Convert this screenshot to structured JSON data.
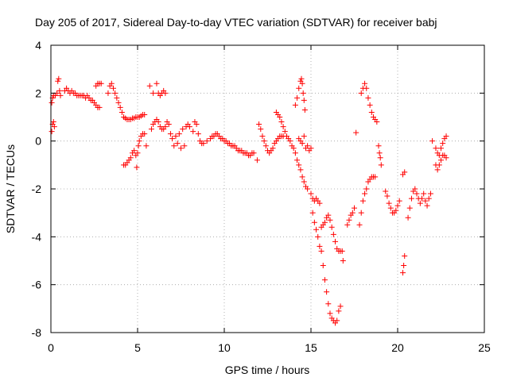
{
  "chart_data": {
    "type": "scatter",
    "title": "Day 205 of 2017, Sidereal Day-to-day VTEC variation (SDTVAR) for receiver babj",
    "xlabel": "GPS time / hours",
    "ylabel": "SDTVAR / TECUs",
    "xlim": [
      0,
      25
    ],
    "ylim": [
      -8,
      4
    ],
    "grid": true,
    "x_ticks": [
      0,
      5,
      10,
      15,
      20,
      25
    ],
    "x_tick_labels": [
      "0",
      "5",
      "10",
      "15",
      "20",
      "25"
    ],
    "y_ticks": [
      -8,
      -6,
      -4,
      -2,
      0,
      2,
      4
    ],
    "y_tick_labels": [
      "-8",
      "-6",
      "-4",
      "-2",
      "0",
      "2",
      "4"
    ],
    "marker": "+",
    "series": [
      {
        "name": "SDTVAR",
        "color": "#ff0000",
        "points": [
          [
            0.05,
            0.4
          ],
          [
            0.1,
            0.7
          ],
          [
            0.15,
            0.8
          ],
          [
            0.2,
            0.6
          ],
          [
            0.05,
            1.6
          ],
          [
            0.1,
            1.8
          ],
          [
            0.15,
            1.9
          ],
          [
            0.25,
            1.9
          ],
          [
            0.35,
            2.0
          ],
          [
            0.4,
            2.5
          ],
          [
            0.45,
            2.6
          ],
          [
            0.5,
            2.1
          ],
          [
            0.55,
            1.9
          ],
          [
            0.8,
            2.1
          ],
          [
            0.9,
            2.2
          ],
          [
            1.0,
            2.1
          ],
          [
            1.1,
            2.0
          ],
          [
            1.2,
            2.1
          ],
          [
            1.3,
            2.0
          ],
          [
            1.4,
            2.0
          ],
          [
            1.5,
            1.9
          ],
          [
            1.6,
            1.9
          ],
          [
            1.7,
            1.9
          ],
          [
            1.8,
            1.9
          ],
          [
            1.9,
            1.9
          ],
          [
            2.0,
            1.8
          ],
          [
            2.1,
            1.9
          ],
          [
            2.2,
            1.8
          ],
          [
            2.3,
            1.7
          ],
          [
            2.4,
            1.7
          ],
          [
            2.5,
            1.6
          ],
          [
            2.6,
            1.5
          ],
          [
            2.7,
            1.4
          ],
          [
            2.8,
            1.4
          ],
          [
            2.6,
            2.3
          ],
          [
            2.7,
            2.4
          ],
          [
            2.8,
            2.4
          ],
          [
            2.9,
            2.4
          ],
          [
            3.3,
            2.0
          ],
          [
            3.4,
            2.3
          ],
          [
            3.5,
            2.4
          ],
          [
            3.6,
            2.2
          ],
          [
            3.7,
            2.0
          ],
          [
            3.8,
            1.8
          ],
          [
            3.9,
            1.6
          ],
          [
            4.0,
            1.4
          ],
          [
            4.1,
            1.2
          ],
          [
            4.2,
            1.0
          ],
          [
            4.3,
            0.95
          ],
          [
            4.4,
            0.9
          ],
          [
            4.5,
            0.9
          ],
          [
            4.6,
            0.9
          ],
          [
            4.7,
            0.95
          ],
          [
            4.8,
            0.95
          ],
          [
            4.9,
            1.0
          ],
          [
            5.0,
            1.0
          ],
          [
            5.1,
            1.0
          ],
          [
            5.2,
            1.05
          ],
          [
            5.3,
            1.1
          ],
          [
            5.4,
            1.1
          ],
          [
            4.2,
            -1.0
          ],
          [
            4.3,
            -1.0
          ],
          [
            4.4,
            -0.9
          ],
          [
            4.5,
            -0.8
          ],
          [
            4.6,
            -0.7
          ],
          [
            4.7,
            -0.5
          ],
          [
            4.8,
            -0.4
          ],
          [
            4.9,
            -0.6
          ],
          [
            4.95,
            -1.1
          ],
          [
            5.0,
            -0.5
          ],
          [
            5.05,
            -0.2
          ],
          [
            5.1,
            0.0
          ],
          [
            5.2,
            0.2
          ],
          [
            5.3,
            0.3
          ],
          [
            5.4,
            0.3
          ],
          [
            5.5,
            -0.2
          ],
          [
            5.8,
            0.5
          ],
          [
            5.9,
            0.7
          ],
          [
            6.0,
            0.8
          ],
          [
            6.1,
            0.9
          ],
          [
            6.2,
            0.8
          ],
          [
            6.3,
            0.6
          ],
          [
            6.4,
            0.5
          ],
          [
            6.5,
            0.5
          ],
          [
            6.6,
            0.6
          ],
          [
            6.7,
            0.8
          ],
          [
            6.8,
            0.7
          ],
          [
            5.7,
            2.3
          ],
          [
            5.9,
            2.0
          ],
          [
            6.1,
            2.4
          ],
          [
            6.2,
            2.0
          ],
          [
            6.3,
            1.9
          ],
          [
            6.4,
            2.0
          ],
          [
            6.5,
            2.1
          ],
          [
            6.6,
            2.0
          ],
          [
            6.9,
            0.3
          ],
          [
            7.0,
            0.1
          ],
          [
            7.2,
            0.2
          ],
          [
            7.4,
            0.3
          ],
          [
            7.6,
            0.5
          ],
          [
            7.8,
            0.6
          ],
          [
            7.9,
            0.7
          ],
          [
            8.0,
            0.6
          ],
          [
            7.1,
            -0.2
          ],
          [
            7.3,
            -0.1
          ],
          [
            7.5,
            -0.3
          ],
          [
            7.7,
            -0.2
          ],
          [
            8.2,
            0.4
          ],
          [
            8.3,
            0.8
          ],
          [
            8.4,
            0.7
          ],
          [
            8.5,
            0.3
          ],
          [
            8.6,
            0.0
          ],
          [
            8.7,
            -0.1
          ],
          [
            8.8,
            -0.1
          ],
          [
            9.0,
            0.0
          ],
          [
            9.2,
            0.1
          ],
          [
            9.3,
            0.2
          ],
          [
            9.4,
            0.2
          ],
          [
            9.5,
            0.3
          ],
          [
            9.6,
            0.3
          ],
          [
            9.7,
            0.2
          ],
          [
            9.8,
            0.1
          ],
          [
            9.9,
            0.1
          ],
          [
            10.0,
            0.0
          ],
          [
            10.1,
            0.0
          ],
          [
            10.2,
            -0.1
          ],
          [
            10.3,
            -0.1
          ],
          [
            10.4,
            -0.2
          ],
          [
            10.5,
            -0.2
          ],
          [
            10.6,
            -0.2
          ],
          [
            10.7,
            -0.3
          ],
          [
            10.8,
            -0.4
          ],
          [
            10.9,
            -0.4
          ],
          [
            11.0,
            -0.4
          ],
          [
            11.1,
            -0.5
          ],
          [
            11.2,
            -0.5
          ],
          [
            11.3,
            -0.5
          ],
          [
            11.4,
            -0.6
          ],
          [
            11.5,
            -0.6
          ],
          [
            11.6,
            -0.5
          ],
          [
            11.7,
            -0.5
          ],
          [
            11.9,
            -0.8
          ],
          [
            12.0,
            0.7
          ],
          [
            12.1,
            0.5
          ],
          [
            12.2,
            0.2
          ],
          [
            12.3,
            0.0
          ],
          [
            12.4,
            -0.2
          ],
          [
            12.5,
            -0.4
          ],
          [
            12.6,
            -0.5
          ],
          [
            12.7,
            -0.4
          ],
          [
            12.8,
            -0.3
          ],
          [
            12.9,
            -0.1
          ],
          [
            13.0,
            0.0
          ],
          [
            13.1,
            0.1
          ],
          [
            13.2,
            0.2
          ],
          [
            13.3,
            0.2
          ],
          [
            13.4,
            0.2
          ],
          [
            13.0,
            1.2
          ],
          [
            13.1,
            1.1
          ],
          [
            13.2,
            1.0
          ],
          [
            13.3,
            0.8
          ],
          [
            13.4,
            0.6
          ],
          [
            13.5,
            0.4
          ],
          [
            13.6,
            0.2
          ],
          [
            13.7,
            0.1
          ],
          [
            13.8,
            0.0
          ],
          [
            13.9,
            -0.2
          ],
          [
            14.0,
            -0.3
          ],
          [
            14.1,
            -0.5
          ],
          [
            14.2,
            -0.8
          ],
          [
            14.3,
            -1.0
          ],
          [
            14.4,
            -1.2
          ],
          [
            14.5,
            -1.5
          ],
          [
            14.6,
            -1.7
          ],
          [
            14.7,
            -1.9
          ],
          [
            14.8,
            -2.0
          ],
          [
            14.1,
            1.5
          ],
          [
            14.2,
            1.8
          ],
          [
            14.3,
            2.2
          ],
          [
            14.4,
            2.5
          ],
          [
            14.45,
            2.6
          ],
          [
            14.5,
            2.4
          ],
          [
            14.55,
            2.0
          ],
          [
            14.6,
            1.7
          ],
          [
            14.65,
            1.3
          ],
          [
            14.3,
            0.1
          ],
          [
            14.4,
            0.0
          ],
          [
            14.5,
            -0.1
          ],
          [
            14.6,
            0.2
          ],
          [
            14.7,
            -0.3
          ],
          [
            14.8,
            -0.2
          ],
          [
            14.9,
            -0.4
          ],
          [
            15.0,
            -0.3
          ],
          [
            15.0,
            -2.2
          ],
          [
            15.1,
            -2.4
          ],
          [
            15.2,
            -2.5
          ],
          [
            15.3,
            -2.4
          ],
          [
            15.4,
            -2.5
          ],
          [
            15.5,
            -2.6
          ],
          [
            15.1,
            -3.0
          ],
          [
            15.2,
            -3.4
          ],
          [
            15.3,
            -3.7
          ],
          [
            15.4,
            -4.0
          ],
          [
            15.5,
            -4.4
          ],
          [
            15.6,
            -4.6
          ],
          [
            15.7,
            -5.2
          ],
          [
            15.8,
            -5.8
          ],
          [
            15.9,
            -6.3
          ],
          [
            16.0,
            -6.8
          ],
          [
            16.1,
            -7.2
          ],
          [
            16.2,
            -7.4
          ],
          [
            16.3,
            -7.5
          ],
          [
            16.4,
            -7.6
          ],
          [
            16.5,
            -7.5
          ],
          [
            16.6,
            -7.1
          ],
          [
            16.7,
            -6.9
          ],
          [
            15.6,
            -3.6
          ],
          [
            15.7,
            -3.5
          ],
          [
            15.8,
            -3.4
          ],
          [
            15.9,
            -3.2
          ],
          [
            16.0,
            -3.1
          ],
          [
            16.1,
            -3.3
          ],
          [
            16.2,
            -3.6
          ],
          [
            16.3,
            -3.9
          ],
          [
            16.4,
            -4.2
          ],
          [
            16.5,
            -4.5
          ],
          [
            16.6,
            -4.6
          ],
          [
            16.7,
            -4.6
          ],
          [
            16.8,
            -4.6
          ],
          [
            16.85,
            -5.0
          ],
          [
            17.1,
            -3.5
          ],
          [
            17.2,
            -3.3
          ],
          [
            17.3,
            -3.1
          ],
          [
            17.4,
            -3.0
          ],
          [
            17.5,
            -2.8
          ],
          [
            17.6,
            0.35
          ],
          [
            17.8,
            -3.5
          ],
          [
            17.9,
            -3.0
          ],
          [
            18.0,
            -2.5
          ],
          [
            18.1,
            -2.2
          ],
          [
            18.2,
            -2.0
          ],
          [
            18.3,
            -1.7
          ],
          [
            18.4,
            -1.6
          ],
          [
            18.5,
            -1.5
          ],
          [
            18.6,
            -1.5
          ],
          [
            18.7,
            -1.5
          ],
          [
            17.9,
            2.0
          ],
          [
            18.0,
            2.2
          ],
          [
            18.1,
            2.4
          ],
          [
            18.2,
            2.2
          ],
          [
            18.3,
            1.8
          ],
          [
            18.4,
            1.5
          ],
          [
            18.5,
            1.2
          ],
          [
            18.6,
            1.0
          ],
          [
            18.7,
            0.9
          ],
          [
            18.8,
            0.8
          ],
          [
            18.9,
            -0.2
          ],
          [
            18.95,
            -0.5
          ],
          [
            19.0,
            -0.7
          ],
          [
            19.05,
            -1.0
          ],
          [
            19.3,
            -2.1
          ],
          [
            19.4,
            -2.3
          ],
          [
            19.5,
            -2.6
          ],
          [
            19.6,
            -2.8
          ],
          [
            19.7,
            -3.0
          ],
          [
            19.8,
            -3.0
          ],
          [
            19.9,
            -2.9
          ],
          [
            20.0,
            -2.7
          ],
          [
            20.1,
            -2.5
          ],
          [
            20.3,
            -5.5
          ],
          [
            20.35,
            -5.2
          ],
          [
            20.4,
            -4.8
          ],
          [
            20.3,
            -1.4
          ],
          [
            20.4,
            -1.3
          ],
          [
            20.6,
            -3.2
          ],
          [
            20.7,
            -2.8
          ],
          [
            20.8,
            -2.4
          ],
          [
            20.9,
            -2.1
          ],
          [
            21.0,
            -2.0
          ],
          [
            21.1,
            -2.2
          ],
          [
            21.2,
            -2.4
          ],
          [
            21.3,
            -2.6
          ],
          [
            21.4,
            -2.4
          ],
          [
            21.5,
            -2.2
          ],
          [
            21.6,
            -2.5
          ],
          [
            21.7,
            -2.7
          ],
          [
            21.8,
            -2.4
          ],
          [
            21.9,
            -2.2
          ],
          [
            22.2,
            -1.0
          ],
          [
            22.3,
            -1.2
          ],
          [
            22.4,
            -1.0
          ],
          [
            22.5,
            -0.8
          ],
          [
            22.6,
            -0.6
          ],
          [
            22.7,
            -0.6
          ],
          [
            22.8,
            -0.7
          ],
          [
            22.0,
            0.0
          ],
          [
            22.2,
            -0.3
          ],
          [
            22.3,
            -0.5
          ],
          [
            22.4,
            -0.6
          ],
          [
            22.5,
            -0.3
          ],
          [
            22.6,
            -0.1
          ],
          [
            22.7,
            0.1
          ],
          [
            22.8,
            0.2
          ]
        ]
      }
    ]
  }
}
